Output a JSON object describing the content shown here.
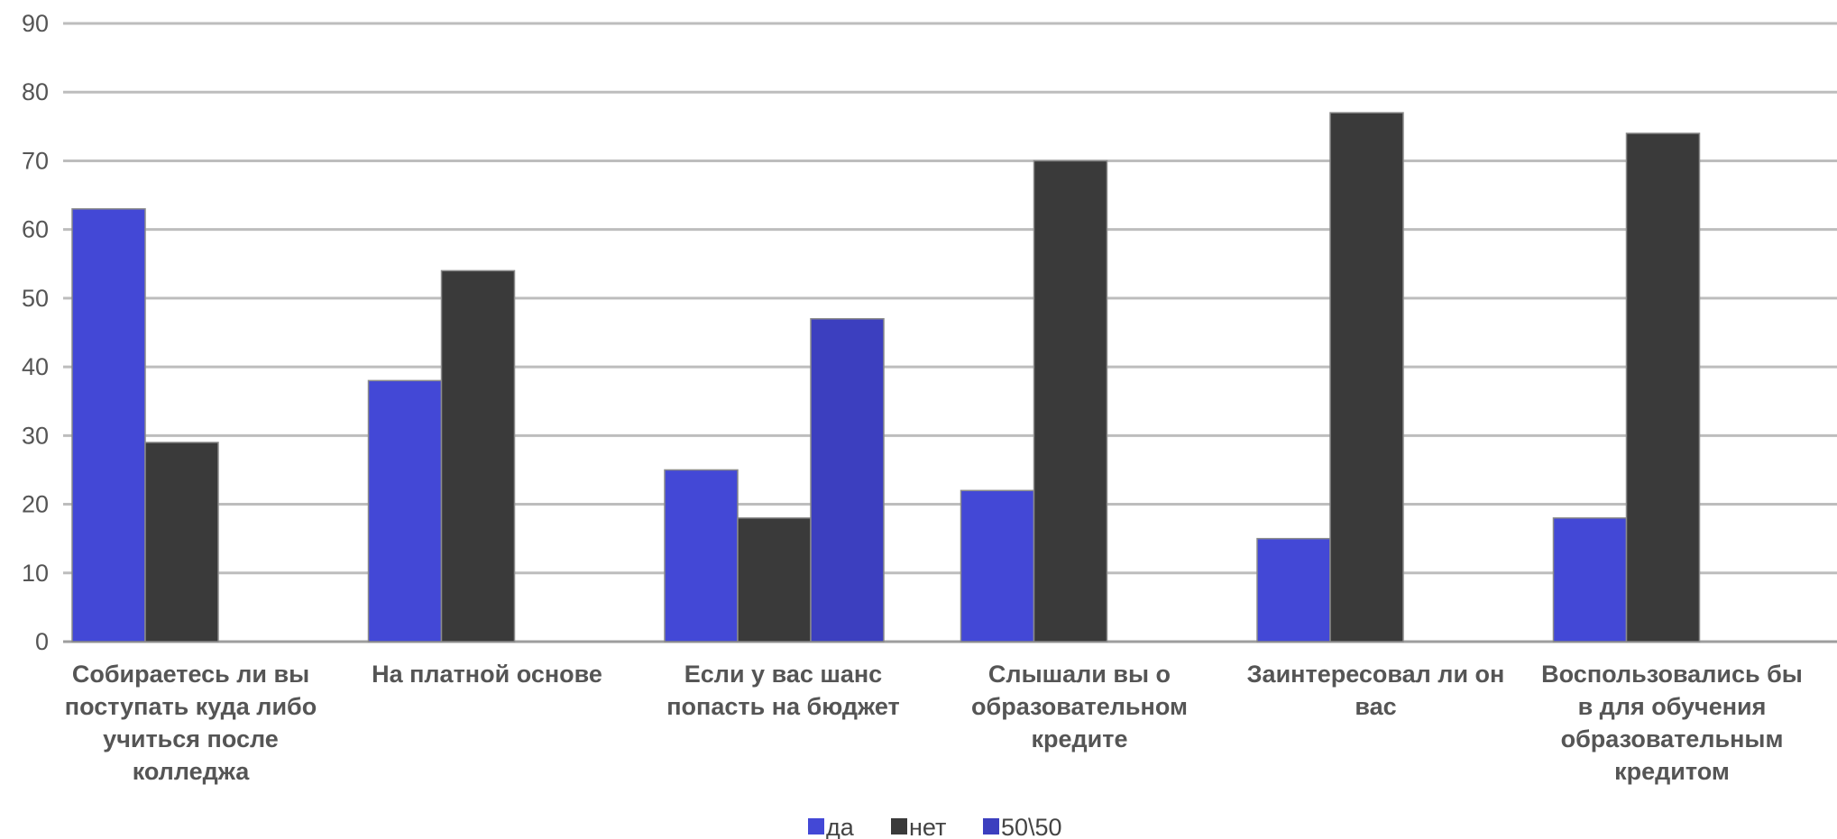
{
  "chart_data": {
    "type": "bar",
    "title": "",
    "xlabel": "",
    "ylabel": "",
    "ylim": [
      0,
      90
    ],
    "yticks": [
      0,
      10,
      20,
      30,
      40,
      50,
      60,
      70,
      80,
      90
    ],
    "grid": true,
    "legend_position": "bottom",
    "categories": [
      [
        "Собираетесь ли вы",
        "поступать куда либо",
        "учиться после",
        "колледжа"
      ],
      [
        "На платной основе"
      ],
      [
        "Если у вас шанс",
        "попасть на бюджет"
      ],
      [
        "Слышали вы о",
        "образовательном",
        "кредите"
      ],
      [
        "Заинтересовал ли он",
        "вас"
      ],
      [
        "Воспользовались бы",
        "в для обучения",
        "образовательным",
        "кредитом"
      ]
    ],
    "series": [
      {
        "name": "да",
        "color": "#4348d6",
        "values": [
          63,
          38,
          25,
          22,
          15,
          18
        ]
      },
      {
        "name": "нет",
        "color": "#3a3a3a",
        "values": [
          29,
          54,
          18,
          70,
          77,
          74
        ]
      },
      {
        "name": "50\\50",
        "color": "#3c3fbf",
        "values": [
          null,
          null,
          47,
          null,
          null,
          null
        ]
      }
    ],
    "colors": {
      "grid": "#bdbdbd",
      "axis": "#9e9e9e",
      "text": "#555555"
    }
  }
}
